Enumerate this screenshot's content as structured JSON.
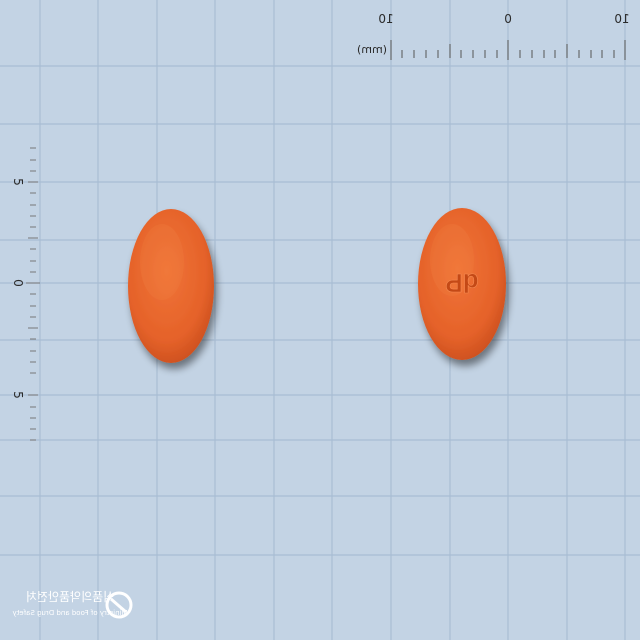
{
  "photo": {
    "background_color": "#c3d3e4",
    "grid_color": "#a9bdd3",
    "tablet_color": "#e8642a"
  },
  "ruler_top": {
    "unit": "(mm)",
    "tick_labels": [
      "10",
      "0",
      "10"
    ]
  },
  "ruler_left": {
    "tick_labels": [
      "5",
      "0",
      "5"
    ]
  },
  "tablets": [
    {
      "name": "tablet-front",
      "imprint": ""
    },
    {
      "name": "tablet-back",
      "imprint": "dP"
    }
  ],
  "watermark": {
    "korean": "식품의약품안전처",
    "english": "Ministry of Food and Drug Safety"
  }
}
